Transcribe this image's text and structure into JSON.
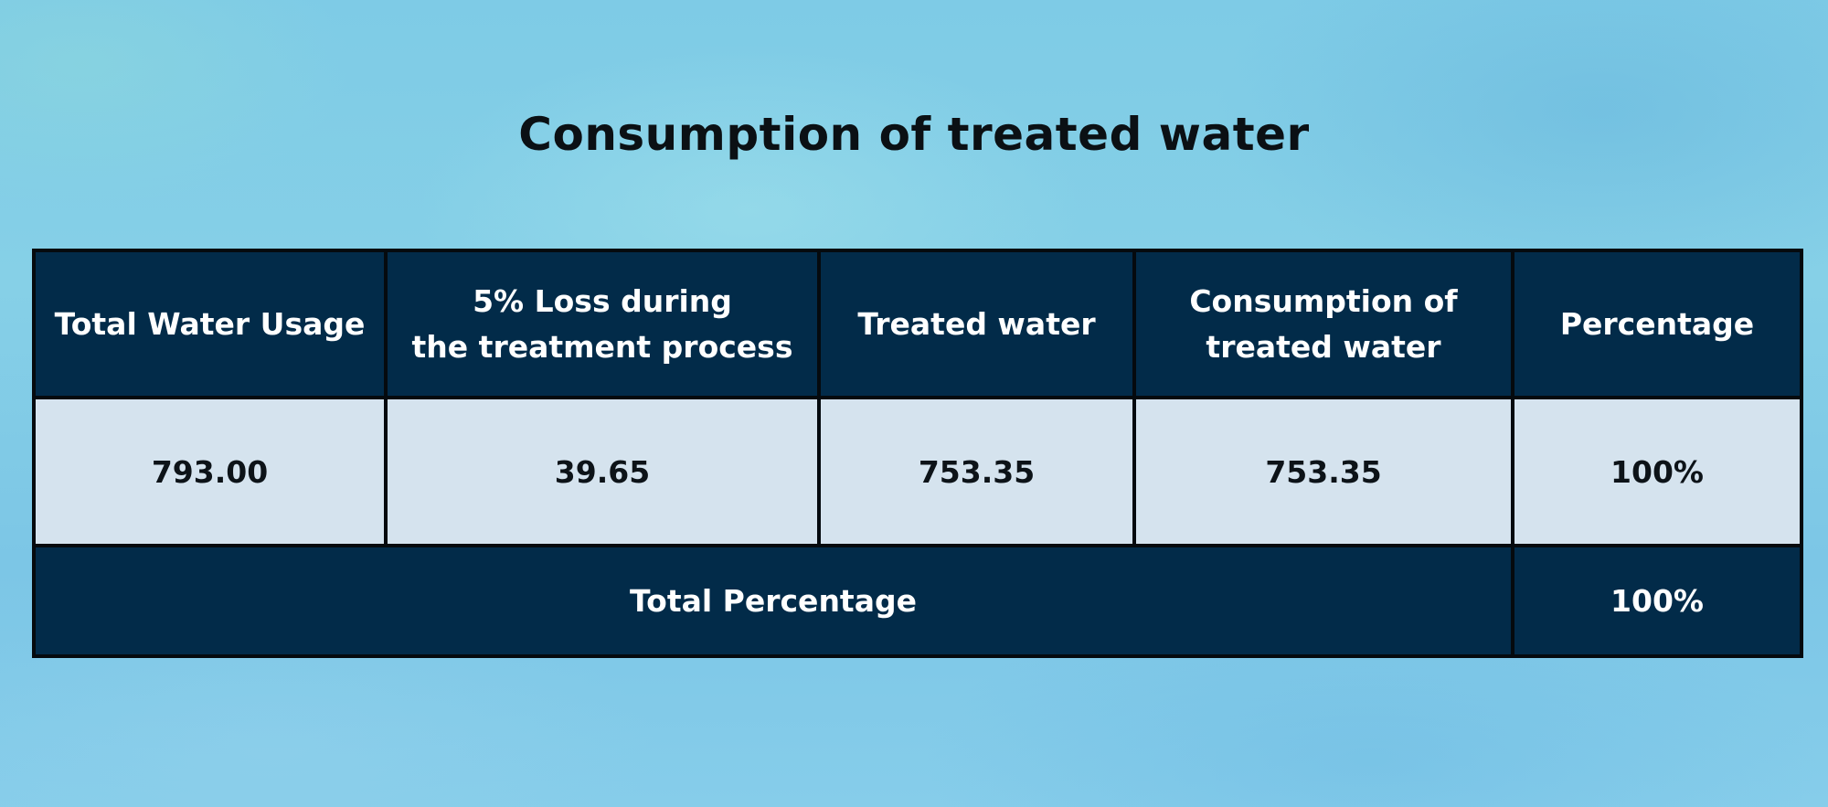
{
  "title": "Consumption of treated water",
  "table": {
    "headers": [
      [
        "Total Water Usage"
      ],
      [
        "5% Loss during",
        "the treatment process"
      ],
      [
        "Treated water"
      ],
      [
        "Consumption of",
        "treated water"
      ],
      [
        "Percentage"
      ]
    ],
    "row": [
      "793.00",
      "39.65",
      "753.35",
      "753.35",
      "100%"
    ],
    "total_label": "Total Percentage",
    "total_value": "100%"
  },
  "colors": {
    "header_bg": "#022b49",
    "cell_bg": "#d5e3ee",
    "border": "#050a0e",
    "background": "#7ecbe6"
  }
}
